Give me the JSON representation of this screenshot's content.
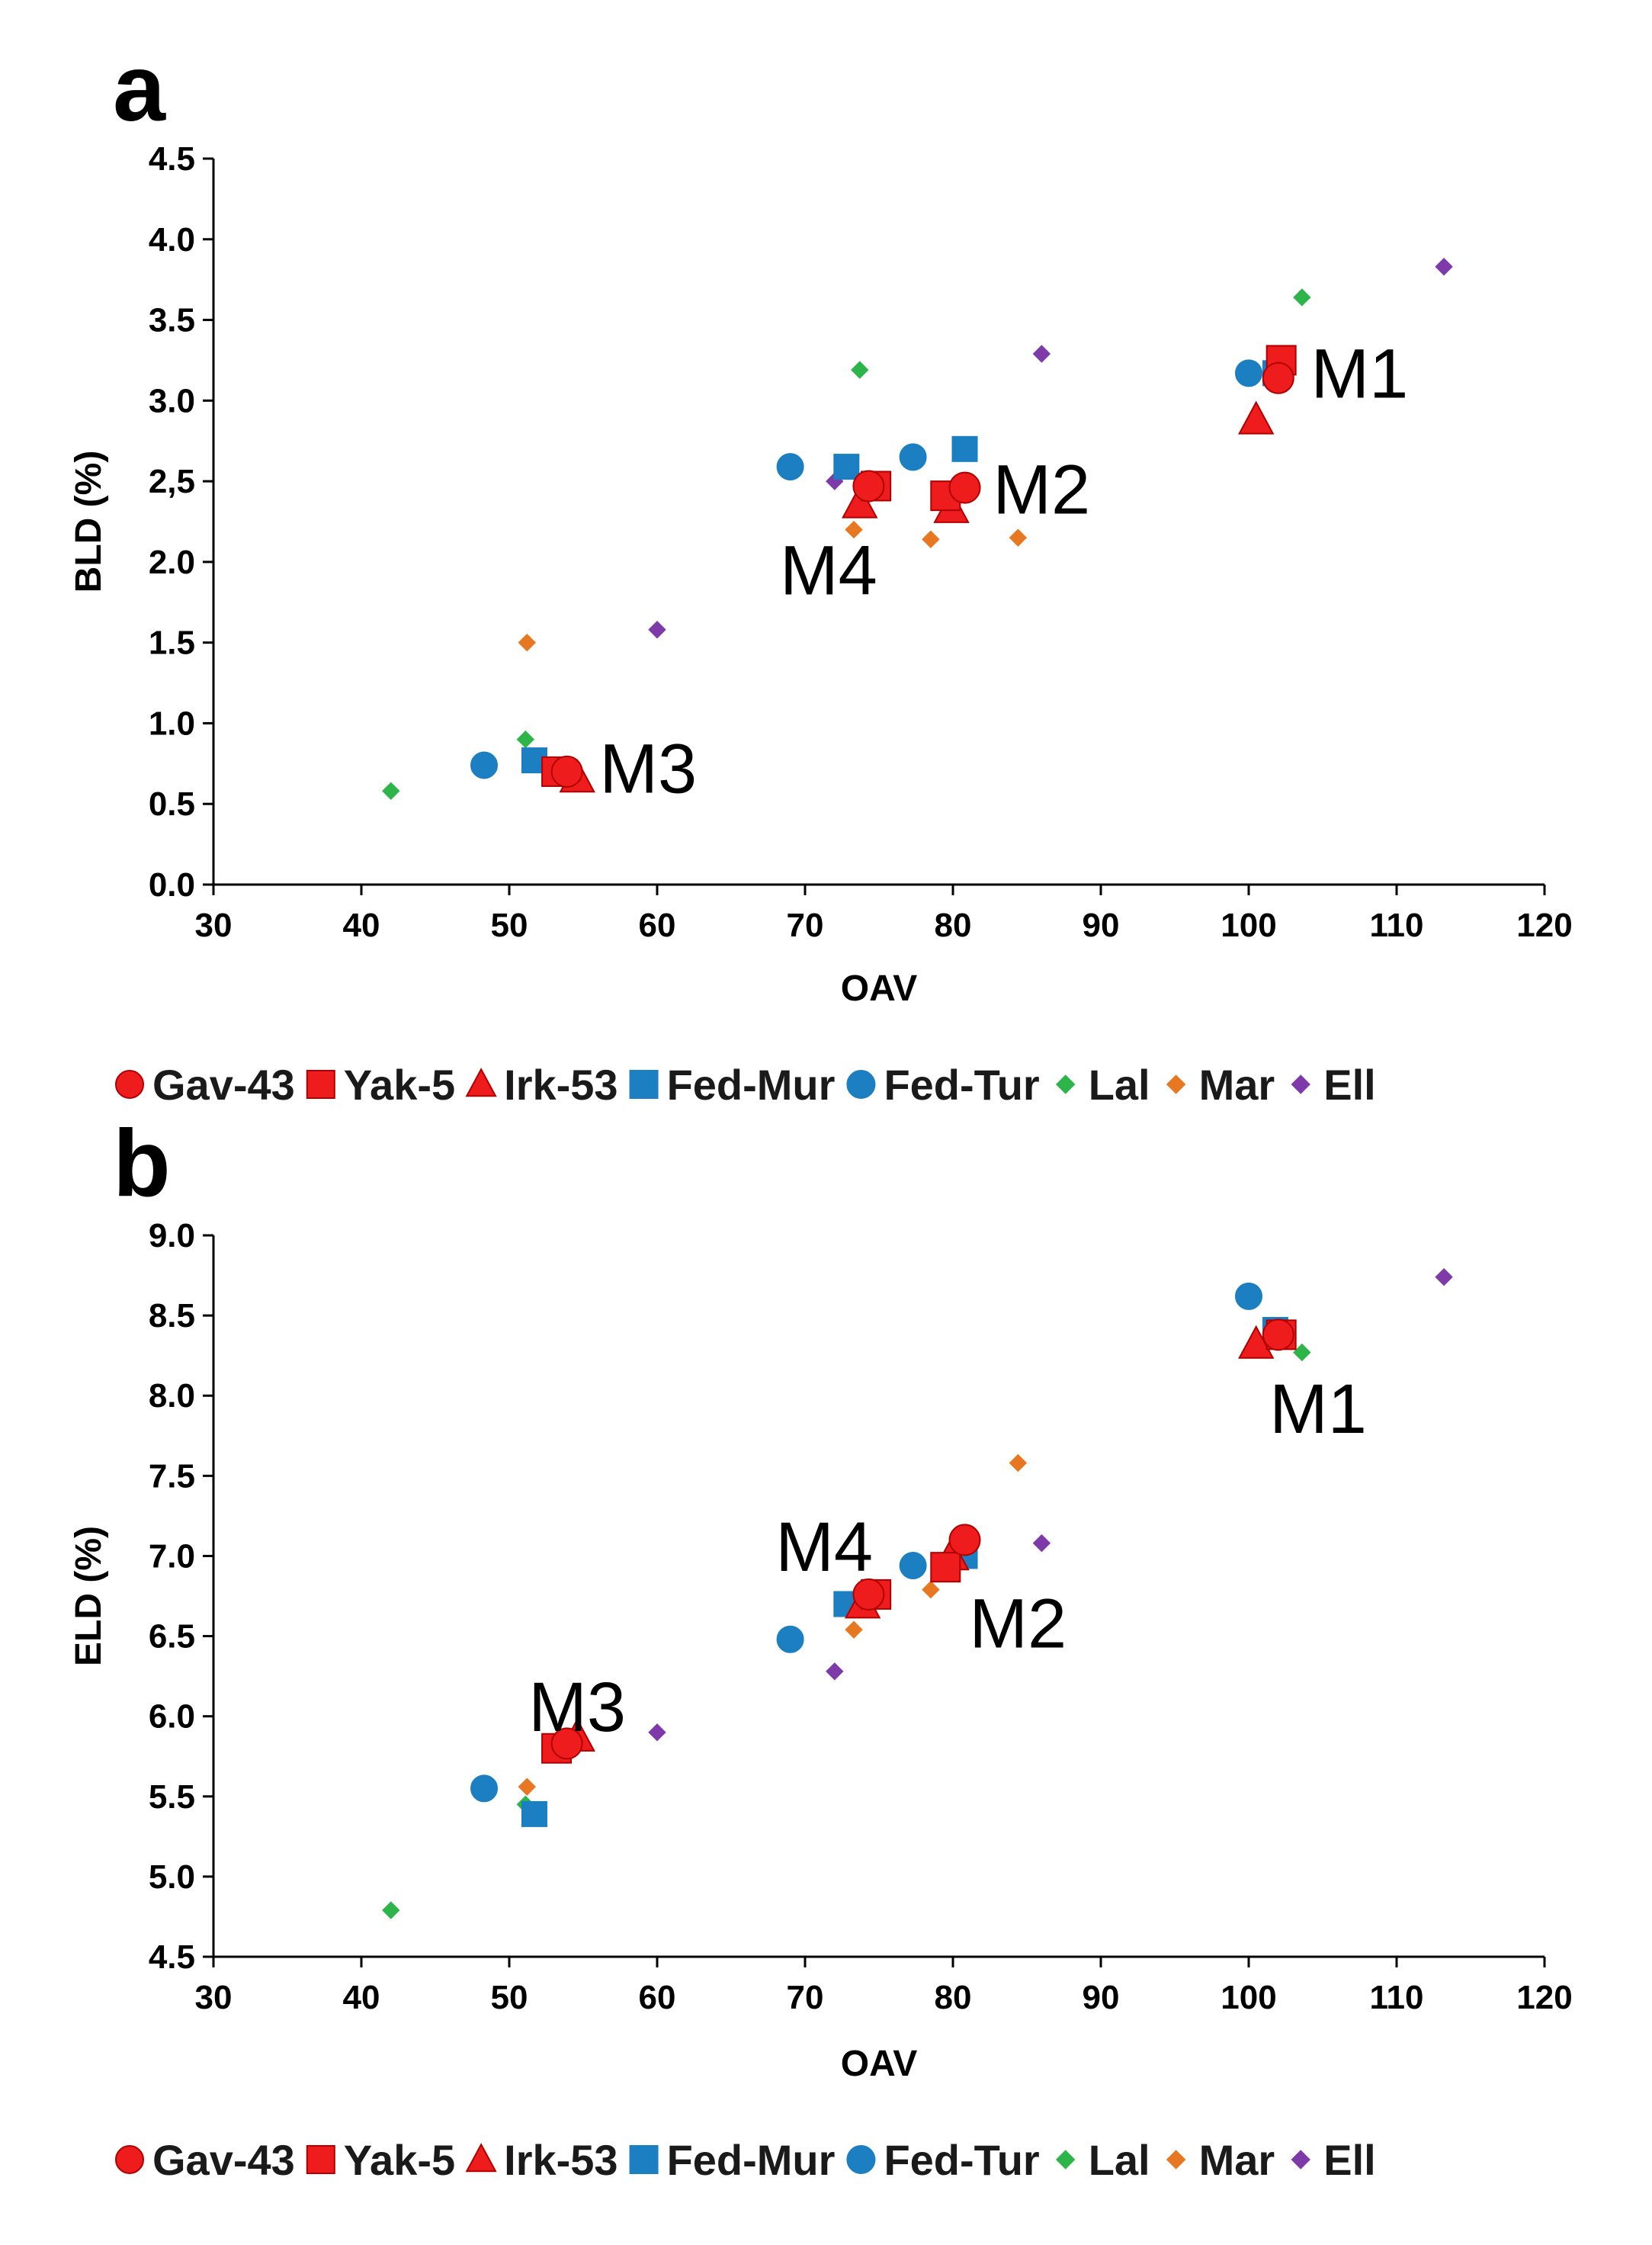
{
  "chart_data": [
    {
      "panel": "a",
      "type": "scatter",
      "xlabel": "OAV",
      "ylabel": "BLD (%)",
      "xlim": [
        30,
        120
      ],
      "ylim": [
        0.0,
        4.5
      ],
      "xticks": [
        30,
        40,
        50,
        60,
        70,
        80,
        90,
        100,
        110,
        120
      ],
      "yticks": [
        "0.0",
        "0.5",
        "1.0",
        "1.5",
        "2.0",
        "2,5",
        "3.0",
        "3.5",
        "4.0",
        "4.5"
      ],
      "grid": false,
      "legend": "bottom",
      "series": [
        {
          "name": "Gav-43",
          "marker": "circle",
          "color": "#ee1c1c",
          "edge": "#b00000",
          "size": 40,
          "points": [
            [
              102,
              3.14
            ],
            [
              80.8,
              2.46
            ],
            [
              74.3,
              2.47
            ],
            [
              53.9,
              0.7
            ]
          ]
        },
        {
          "name": "Yak-5",
          "marker": "square",
          "color": "#ee1c1c",
          "edge": "#b00000",
          "size": 38,
          "points": [
            [
              102.2,
              3.25
            ],
            [
              79.5,
              2.41
            ],
            [
              74.8,
              2.47
            ],
            [
              53.2,
              0.7
            ]
          ]
        },
        {
          "name": "Irk-53",
          "marker": "triangle",
          "color": "#ee1c1c",
          "edge": "#b00000",
          "size": 42,
          "points": [
            [
              100.5,
              2.88
            ],
            [
              79.9,
              2.33
            ],
            [
              73.7,
              2.36
            ],
            [
              54.6,
              0.66
            ]
          ]
        },
        {
          "name": "Fed-Mur",
          "marker": "square",
          "color": "#1b7fc1",
          "edge": "#1b7fc1",
          "size": 32,
          "points": [
            [
              101.8,
              3.17
            ],
            [
              80.8,
              2.7
            ],
            [
              72.8,
              2.59
            ],
            [
              51.7,
              0.77
            ]
          ]
        },
        {
          "name": "Fed-Tur",
          "marker": "circle",
          "color": "#1b7fc1",
          "edge": "#1b7fc1",
          "size": 34,
          "points": [
            [
              100,
              3.17
            ],
            [
              77.3,
              2.65
            ],
            [
              69,
              2.59
            ],
            [
              48.3,
              0.74
            ]
          ]
        },
        {
          "name": "Lal",
          "marker": "diamond",
          "color": "#2db54a",
          "edge": "#2db54a",
          "size": 22,
          "points": [
            [
              103.6,
              3.64
            ],
            [
              73.7,
              3.19
            ],
            [
              51.1,
              0.9
            ],
            [
              42,
              0.58
            ]
          ]
        },
        {
          "name": "Mar",
          "marker": "diamond",
          "color": "#e87722",
          "edge": "#e87722",
          "size": 22,
          "points": [
            [
              84.4,
              2.15
            ],
            [
              78.5,
              2.14
            ],
            [
              73.3,
              2.2
            ],
            [
              51.2,
              1.5
            ]
          ]
        },
        {
          "name": "Ell",
          "marker": "diamond",
          "color": "#7d3aa8",
          "edge": "#7d3aa8",
          "size": 22,
          "points": [
            [
              113.2,
              3.83
            ],
            [
              86,
              3.29
            ],
            [
              72,
              2.5
            ],
            [
              60,
              1.58
            ]
          ]
        }
      ],
      "annotations": [
        {
          "text": "M1",
          "x": 104.2,
          "y": 3.17
        },
        {
          "text": "M2",
          "x": 82.7,
          "y": 2.45
        },
        {
          "text": "M4",
          "x": 68.3,
          "y": 1.95
        },
        {
          "text": "M3",
          "x": 56.1,
          "y": 0.72
        }
      ]
    },
    {
      "panel": "b",
      "type": "scatter",
      "xlabel": "OAV",
      "ylabel": "ELD (%)",
      "xlim": [
        30,
        120
      ],
      "ylim": [
        4.5,
        9.0
      ],
      "xticks": [
        30,
        40,
        50,
        60,
        70,
        80,
        90,
        100,
        110,
        120
      ],
      "yticks": [
        "4.5",
        "5.0",
        "5.5",
        "6.0",
        "6.5",
        "7.0",
        "7.5",
        "8.0",
        "8.5",
        "9.0"
      ],
      "grid": false,
      "legend": "bottom",
      "series": [
        {
          "name": "Gav-43",
          "marker": "circle",
          "color": "#ee1c1c",
          "edge": "#b00000",
          "size": 40,
          "points": [
            [
              102,
              8.38
            ],
            [
              80.8,
              7.1
            ],
            [
              74.3,
              6.76
            ],
            [
              53.9,
              5.83
            ]
          ]
        },
        {
          "name": "Yak-5",
          "marker": "square",
          "color": "#ee1c1c",
          "edge": "#b00000",
          "size": 38,
          "points": [
            [
              102.2,
              8.38
            ],
            [
              79.5,
              6.93
            ],
            [
              74.8,
              6.76
            ],
            [
              53.2,
              5.8
            ]
          ]
        },
        {
          "name": "Irk-53",
          "marker": "triangle",
          "color": "#ee1c1c",
          "edge": "#b00000",
          "size": 42,
          "points": [
            [
              100.5,
              8.32
            ],
            [
              79.9,
              7.0
            ],
            [
              73.9,
              6.7
            ],
            [
              54.6,
              5.87
            ]
          ]
        },
        {
          "name": "Fed-Mur",
          "marker": "square",
          "color": "#1b7fc1",
          "edge": "#1b7fc1",
          "size": 32,
          "points": [
            [
              101.8,
              8.41
            ],
            [
              80.8,
              7.0
            ],
            [
              72.8,
              6.7
            ],
            [
              51.7,
              5.39
            ]
          ]
        },
        {
          "name": "Fed-Tur",
          "marker": "circle",
          "color": "#1b7fc1",
          "edge": "#1b7fc1",
          "size": 34,
          "points": [
            [
              100,
              8.62
            ],
            [
              77.3,
              6.94
            ],
            [
              69,
              6.48
            ],
            [
              48.3,
              5.55
            ]
          ]
        },
        {
          "name": "Lal",
          "marker": "diamond",
          "color": "#2db54a",
          "edge": "#2db54a",
          "size": 22,
          "points": [
            [
              103.6,
              8.27
            ],
            [
              73.7,
              6.67
            ],
            [
              51.1,
              5.45
            ],
            [
              42,
              4.79
            ]
          ]
        },
        {
          "name": "Mar",
          "marker": "diamond",
          "color": "#e87722",
          "edge": "#e87722",
          "size": 22,
          "points": [
            [
              84.4,
              7.58
            ],
            [
              78.5,
              6.79
            ],
            [
              73.3,
              6.54
            ],
            [
              51.2,
              5.56
            ]
          ]
        },
        {
          "name": "Ell",
          "marker": "diamond",
          "color": "#7d3aa8",
          "edge": "#7d3aa8",
          "size": 22,
          "points": [
            [
              113.2,
              8.74
            ],
            [
              86,
              7.08
            ],
            [
              72,
              6.28
            ],
            [
              60,
              5.9
            ]
          ]
        }
      ],
      "annotations": [
        {
          "text": "M1",
          "x": 101.4,
          "y": 7.92
        },
        {
          "text": "M4",
          "x": 68,
          "y": 7.06
        },
        {
          "text": "M2",
          "x": 81.1,
          "y": 6.58
        },
        {
          "text": "M3",
          "x": 51.3,
          "y": 6.06
        }
      ]
    }
  ]
}
